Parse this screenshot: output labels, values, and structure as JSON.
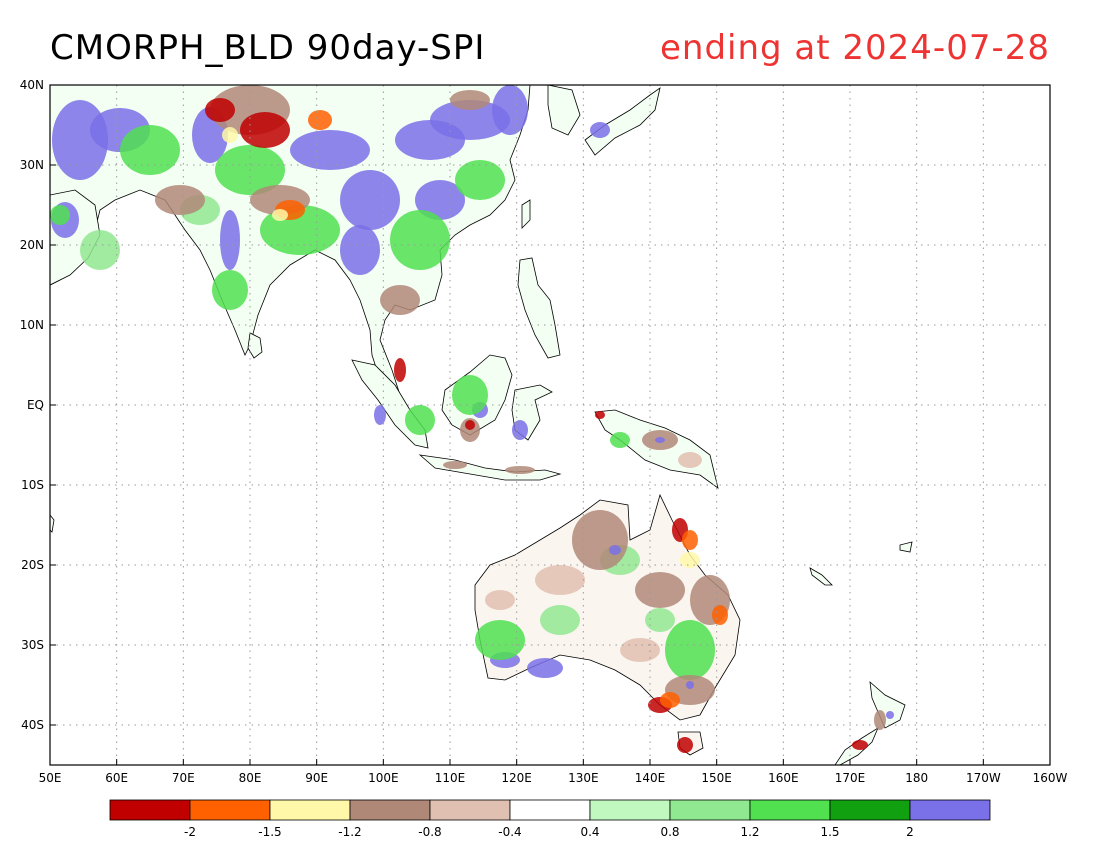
{
  "header": {
    "title": "CMORPH_BLD 90day-SPI",
    "date_label": "ending at 2024-07-28"
  },
  "map": {
    "lon_range": [
      50,
      200
    ],
    "lat_range": [
      -45,
      40
    ],
    "lon_ticks": [
      "50E",
      "60E",
      "70E",
      "80E",
      "90E",
      "100E",
      "110E",
      "120E",
      "130E",
      "140E",
      "150E",
      "160E",
      "170E",
      "180",
      "170W",
      "160W"
    ],
    "lat_ticks": [
      "40N",
      "30N",
      "20N",
      "10N",
      "EQ",
      "10S",
      "20S",
      "30S",
      "40S"
    ],
    "grid": "dotted"
  },
  "colorbar": {
    "colors": [
      "#c00000",
      "#ff6000",
      "#fff8a8",
      "#b08878",
      "#e0c0b0",
      "#ffffff",
      "#c0f8c0",
      "#90e890",
      "#50e050",
      "#10a010",
      "#7a70e8"
    ],
    "labels": [
      "-2",
      "-1.5",
      "-1.2",
      "-0.8",
      "-0.4",
      "0.4",
      "0.8",
      "1.2",
      "1.5",
      "2"
    ]
  },
  "colors": {
    "date": "#ee3333",
    "wet_extreme": "#7a70e8",
    "dry_extreme": "#c00000"
  }
}
